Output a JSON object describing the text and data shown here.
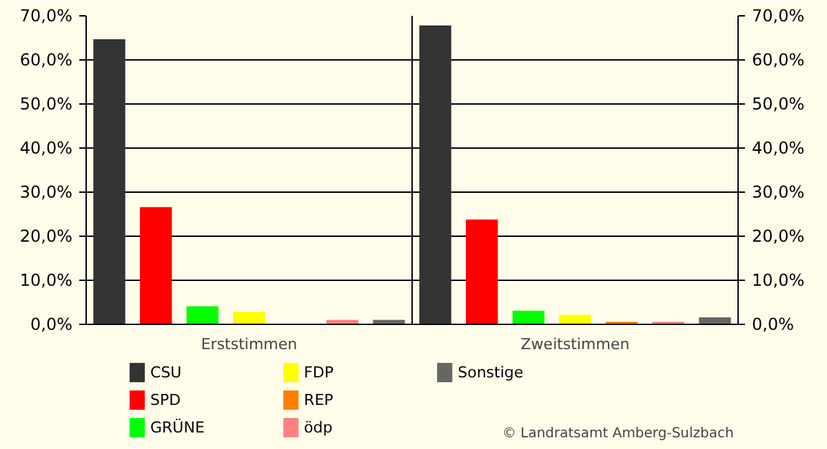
{
  "chart_data": {
    "type": "bar",
    "categories": [
      "Erststimmen",
      "Zweitstimmen"
    ],
    "series": [
      {
        "name": "CSU",
        "color": "#333333",
        "values": [
          64.7,
          67.8
        ]
      },
      {
        "name": "SPD",
        "color": "#ff0000",
        "values": [
          26.6,
          23.8
        ]
      },
      {
        "name": "GRÜNE",
        "color": "#00ff00",
        "values": [
          4.1,
          3.1
        ]
      },
      {
        "name": "FDP",
        "color": "#ffff00",
        "values": [
          2.8,
          2.2
        ]
      },
      {
        "name": "REP",
        "color": "#ff8000",
        "values": [
          null,
          0.6
        ]
      },
      {
        "name": "ödp",
        "color": "#ff8080",
        "values": [
          1.0,
          0.6
        ]
      },
      {
        "name": "Sonstige",
        "color": "#666666",
        "values": [
          1.0,
          1.6
        ]
      }
    ],
    "ylim": [
      0,
      70
    ],
    "yticks": [
      {
        "value": 0,
        "label": "0,0%"
      },
      {
        "value": 10,
        "label": "10,0%"
      },
      {
        "value": 20,
        "label": "20,0%"
      },
      {
        "value": 30,
        "label": "30,0%"
      },
      {
        "value": 40,
        "label": "40,0%"
      },
      {
        "value": 50,
        "label": "50,0%"
      },
      {
        "value": 60,
        "label": "60,0%"
      },
      {
        "value": 70,
        "label": "70,0%"
      }
    ],
    "y2lim": [
      0,
      70
    ],
    "y2ticks": [
      {
        "value": 0,
        "label": "0,0%"
      },
      {
        "value": 10,
        "label": "10,0%"
      },
      {
        "value": 20,
        "label": "20,0%"
      },
      {
        "value": 30,
        "label": "30,0%"
      },
      {
        "value": 40,
        "label": "40,0%"
      },
      {
        "value": 50,
        "label": "50,0%"
      },
      {
        "value": 60,
        "label": "60,0%"
      },
      {
        "value": 70,
        "label": "70,0%"
      }
    ],
    "grid": "y",
    "legend": "bottom",
    "annotations": [
      "© Landratsamt Amberg-Sulzbach"
    ]
  }
}
